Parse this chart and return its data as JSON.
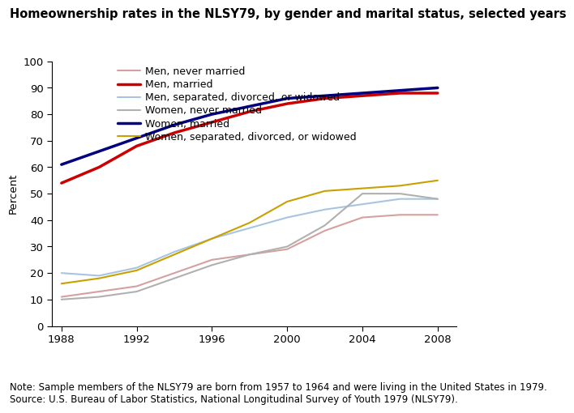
{
  "title": "Homeownership rates in the NLSY79, by gender and marital status, selected years",
  "ylabel": "Percent",
  "note": "Note: Sample members of the NLSY79 are born from 1957 to 1964 and were living in the United States in 1979.\nSource: U.S. Bureau of Labor Statistics, National Longitudinal Survey of Youth 1979 (NLSY79).",
  "years": [
    1988,
    1990,
    1992,
    1994,
    1996,
    1998,
    2000,
    2002,
    2004,
    2006,
    2008
  ],
  "series": [
    {
      "label": "Men, never married",
      "color": "#d4a0a0",
      "linewidth": 1.5,
      "data": [
        11,
        13,
        15,
        20,
        25,
        27,
        29,
        36,
        41,
        42,
        42
      ]
    },
    {
      "label": "Men, married",
      "color": "#cc0000",
      "linewidth": 2.5,
      "data": [
        54,
        60,
        68,
        73,
        77,
        81,
        84,
        86,
        87,
        88,
        88
      ]
    },
    {
      "label": "Men, separated, divorced, or widowed",
      "color": "#a8c4e0",
      "linewidth": 1.5,
      "data": [
        20,
        19,
        22,
        28,
        33,
        37,
        41,
        44,
        46,
        48,
        48
      ]
    },
    {
      "label": "Women, never married",
      "color": "#b0b0b0",
      "linewidth": 1.5,
      "data": [
        10,
        11,
        13,
        18,
        23,
        27,
        30,
        38,
        50,
        50,
        48
      ]
    },
    {
      "label": "Women, married",
      "color": "#000080",
      "linewidth": 2.5,
      "data": [
        61,
        66,
        71,
        76,
        80,
        83,
        86,
        87,
        88,
        89,
        90
      ]
    },
    {
      "label": "Women, separated, divorced, or widowed",
      "color": "#c8a000",
      "linewidth": 1.5,
      "data": [
        16,
        18,
        21,
        27,
        33,
        39,
        47,
        51,
        52,
        53,
        55
      ]
    }
  ],
  "xlim": [
    1987.5,
    2009
  ],
  "ylim": [
    0,
    100
  ],
  "xticks": [
    1988,
    1992,
    1996,
    2000,
    2004,
    2008
  ],
  "yticks": [
    0,
    10,
    20,
    30,
    40,
    50,
    60,
    70,
    80,
    90,
    100
  ],
  "background_color": "#ffffff",
  "title_fontsize": 10.5,
  "axis_fontsize": 9.5,
  "legend_fontsize": 9,
  "note_fontsize": 8.5
}
